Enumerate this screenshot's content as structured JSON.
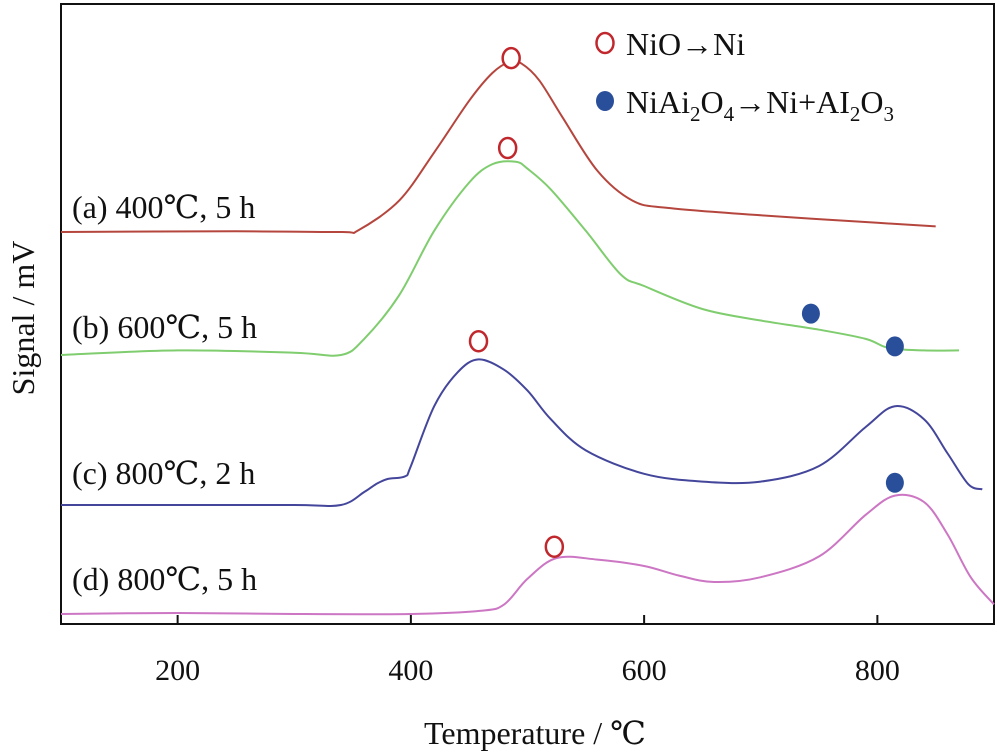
{
  "chart_data": {
    "type": "line",
    "xlabel": "Temperature / ℃",
    "ylabel": "Signal / mV",
    "xlim": [
      100,
      900
    ],
    "x_ticks": [
      200,
      400,
      600,
      800
    ],
    "grid": false,
    "legend_position": "top-right",
    "legend": [
      {
        "marker": "open-circle",
        "color": "#c0282d",
        "label": "NiO→Ni"
      },
      {
        "marker": "filled-circle",
        "color": "#2a4f9a",
        "label_parts": [
          "NiAi",
          "2",
          "O",
          "4",
          "→Ni+AI",
          "2",
          "O",
          "3"
        ]
      }
    ],
    "series": [
      {
        "name": "(a) 400℃, 5 h",
        "color": "#b5463e",
        "points": [
          [
            100,
            0.0
          ],
          [
            250,
            0.004
          ],
          [
            340,
            0.0
          ],
          [
            355,
            0.01
          ],
          [
            390,
            0.17
          ],
          [
            420,
            0.43
          ],
          [
            450,
            0.71
          ],
          [
            470,
            0.86
          ],
          [
            485,
            0.92
          ],
          [
            495,
            0.91
          ],
          [
            510,
            0.82
          ],
          [
            530,
            0.62
          ],
          [
            560,
            0.33
          ],
          [
            590,
            0.17
          ],
          [
            620,
            0.13
          ],
          [
            700,
            0.09
          ],
          [
            800,
            0.05
          ],
          [
            850,
            0.03
          ]
        ],
        "markers": [
          {
            "x": 486,
            "y": 0.94,
            "type": "open-circle"
          }
        ]
      },
      {
        "name": "(b) 600℃, 5 h",
        "color": "#7fcd6e",
        "points": [
          [
            100,
            0.0
          ],
          [
            200,
            0.02
          ],
          [
            300,
            0.01
          ],
          [
            340,
            0.0
          ],
          [
            360,
            0.07
          ],
          [
            390,
            0.26
          ],
          [
            420,
            0.54
          ],
          [
            450,
            0.75
          ],
          [
            470,
            0.83
          ],
          [
            490,
            0.84
          ],
          [
            500,
            0.81
          ],
          [
            520,
            0.72
          ],
          [
            550,
            0.54
          ],
          [
            580,
            0.35
          ],
          [
            600,
            0.3
          ],
          [
            650,
            0.2
          ],
          [
            700,
            0.15
          ],
          [
            750,
            0.11
          ],
          [
            790,
            0.07
          ],
          [
            810,
            0.03
          ],
          [
            840,
            0.02
          ],
          [
            870,
            0.02
          ]
        ],
        "markers": [
          {
            "x": 483,
            "y": 0.9,
            "type": "open-circle"
          },
          {
            "x": 743,
            "y": 0.18,
            "type": "filled-circle"
          }
        ]
      },
      {
        "name": "(c) 800℃, 2 h",
        "color": "#44469b",
        "points": [
          [
            100,
            0.0
          ],
          [
            200,
            0.0
          ],
          [
            300,
            0.0
          ],
          [
            340,
            0.0
          ],
          [
            360,
            0.05
          ],
          [
            370,
            0.08
          ],
          [
            380,
            0.1
          ],
          [
            395,
            0.11
          ],
          [
            400,
            0.15
          ],
          [
            420,
            0.38
          ],
          [
            440,
            0.51
          ],
          [
            458,
            0.56
          ],
          [
            480,
            0.52
          ],
          [
            500,
            0.44
          ],
          [
            520,
            0.33
          ],
          [
            550,
            0.21
          ],
          [
            600,
            0.12
          ],
          [
            650,
            0.09
          ],
          [
            700,
            0.09
          ],
          [
            750,
            0.15
          ],
          [
            790,
            0.3
          ],
          [
            815,
            0.38
          ],
          [
            840,
            0.33
          ],
          [
            860,
            0.2
          ],
          [
            878,
            0.08
          ],
          [
            890,
            0.06
          ]
        ],
        "markers": [
          {
            "x": 458,
            "y": 0.63,
            "type": "open-circle"
          },
          {
            "x": 815,
            "y": 0.61,
            "type": "filled-circle"
          }
        ]
      },
      {
        "name": "(d) 800℃, 5 h",
        "color": "#cc76c4",
        "points": [
          [
            100,
            0.0
          ],
          [
            200,
            0.006
          ],
          [
            300,
            0.0
          ],
          [
            400,
            0.0
          ],
          [
            460,
            0.02
          ],
          [
            480,
            0.06
          ],
          [
            500,
            0.22
          ],
          [
            525,
            0.35
          ],
          [
            560,
            0.34
          ],
          [
            600,
            0.3
          ],
          [
            630,
            0.24
          ],
          [
            660,
            0.2
          ],
          [
            700,
            0.23
          ],
          [
            750,
            0.36
          ],
          [
            790,
            0.62
          ],
          [
            815,
            0.74
          ],
          [
            840,
            0.7
          ],
          [
            860,
            0.5
          ],
          [
            880,
            0.23
          ],
          [
            900,
            0.06
          ]
        ],
        "markers": [
          {
            "x": 523,
            "y": 0.42,
            "type": "open-circle"
          },
          {
            "x": 815,
            "y": 0.82,
            "type": "filled-circle"
          }
        ]
      }
    ]
  }
}
